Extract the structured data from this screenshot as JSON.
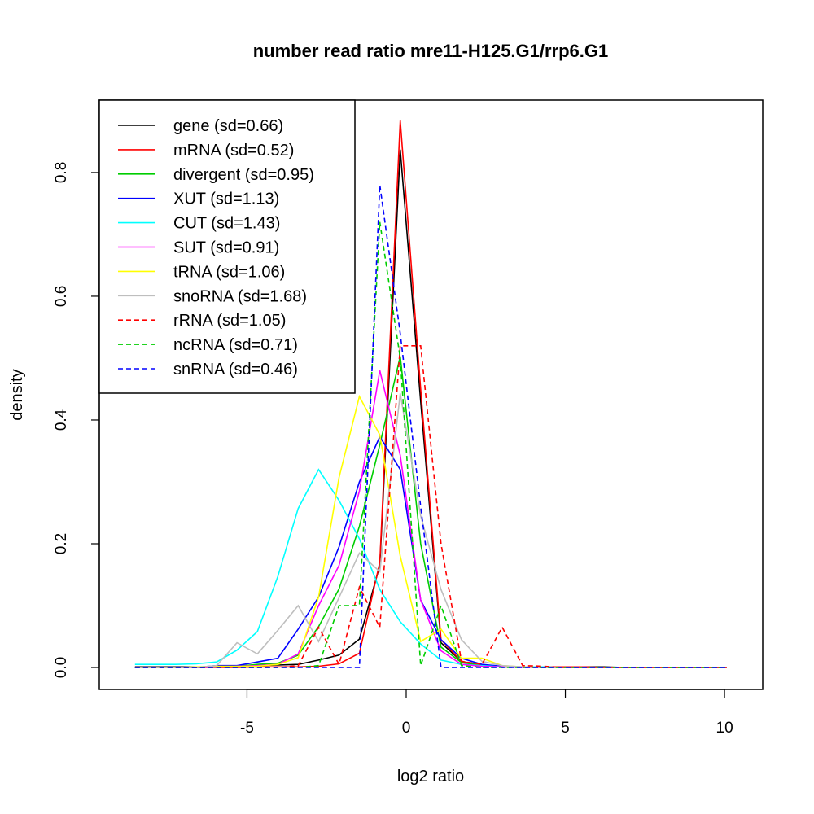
{
  "chart_data": {
    "type": "line",
    "title": "number read ratio mre11-H125.G1/rrp6.G1",
    "xlabel": "log2 ratio",
    "ylabel": "density",
    "xlim": [
      -9.64,
      11.2
    ],
    "ylim": [
      -0.0355,
      0.917
    ],
    "xticks": [
      -5,
      0,
      5,
      10
    ],
    "xtick_labels": [
      "-5",
      "0",
      "5",
      "10"
    ],
    "yticks": [
      0.0,
      0.2,
      0.4,
      0.6,
      0.8
    ],
    "ytick_labels": [
      "0.0",
      "0.2",
      "0.4",
      "0.6",
      "0.8"
    ],
    "grid": false,
    "legend_position": "top-left",
    "x_start": -8.52,
    "x_step": 0.641,
    "series": [
      {
        "name": "gene (sd=0.66)",
        "color": "#000000",
        "dash": false,
        "values": [
          0.001,
          0.001,
          0.001,
          0.001,
          0.001,
          0.002,
          0.003,
          0.004,
          0.005,
          0.012,
          0.02,
          0.046,
          0.165,
          0.837,
          0.43,
          0.04,
          0.01,
          0.003,
          0.001,
          0.001,
          0.001,
          0.001,
          0.001,
          0.001,
          0,
          0,
          0,
          0,
          0,
          0
        ]
      },
      {
        "name": "mRNA (sd=0.52)",
        "color": "#ff0000",
        "dash": false,
        "values": [
          0,
          0,
          0,
          0,
          0,
          0,
          0.001,
          0.001,
          0.001,
          0.002,
          0.006,
          0.023,
          0.17,
          0.884,
          0.45,
          0.045,
          0.01,
          0.003,
          0.001,
          0.001,
          0.001,
          0.001,
          0.001,
          0,
          0,
          0,
          0,
          0,
          0,
          0
        ]
      },
      {
        "name": "divergent (sd=0.95)",
        "color": "#00cd00",
        "dash": false,
        "values": [
          0,
          0,
          0,
          0,
          0.001,
          0.002,
          0.005,
          0.007,
          0.02,
          0.066,
          0.127,
          0.228,
          0.36,
          0.503,
          0.2,
          0.033,
          0.008,
          0.003,
          0.001,
          0.001,
          0,
          0,
          0,
          0,
          0,
          0,
          0,
          0,
          0,
          0
        ]
      },
      {
        "name": "XUT (sd=1.13)",
        "color": "#0000ff",
        "dash": false,
        "values": [
          0,
          0,
          0,
          0,
          0.003,
          0.003,
          0.009,
          0.015,
          0.062,
          0.114,
          0.195,
          0.3,
          0.373,
          0.32,
          0.109,
          0.045,
          0.015,
          0.005,
          0.002,
          0.001,
          0,
          0,
          0,
          0,
          0,
          0,
          0,
          0,
          0,
          0
        ]
      },
      {
        "name": "CUT (sd=1.43)",
        "color": "#00ffff",
        "dash": false,
        "values": [
          0.005,
          0.005,
          0.005,
          0.006,
          0.009,
          0.028,
          0.058,
          0.147,
          0.257,
          0.32,
          0.27,
          0.208,
          0.126,
          0.074,
          0.038,
          0.012,
          0.005,
          0.003,
          0.001,
          0.001,
          0.001,
          0,
          0,
          0,
          0,
          0,
          0,
          0,
          0,
          0
        ]
      },
      {
        "name": "SUT (sd=0.91)",
        "color": "#ff00ff",
        "dash": false,
        "values": [
          0,
          0,
          0,
          0,
          0.001,
          0.002,
          0.003,
          0.005,
          0.022,
          0.1,
          0.165,
          0.285,
          0.48,
          0.343,
          0.109,
          0.027,
          0.005,
          0.002,
          0.001,
          0,
          0,
          0,
          0,
          0,
          0,
          0,
          0,
          0,
          0,
          0
        ]
      },
      {
        "name": "tRNA (sd=1.06)",
        "color": "#ffff00",
        "dash": false,
        "values": [
          0,
          0,
          0,
          0.001,
          0.002,
          0.002,
          0.002,
          0.005,
          0.016,
          0.114,
          0.307,
          0.438,
          0.376,
          0.18,
          0.042,
          0.062,
          0.015,
          0.015,
          0.003,
          0.001,
          0,
          0,
          0,
          0,
          0,
          0,
          0,
          0,
          0,
          0
        ]
      },
      {
        "name": "snoRNA (sd=1.68)",
        "color": "#bebebe",
        "dash": false,
        "values": [
          0,
          0,
          0,
          0,
          0.003,
          0.04,
          0.022,
          0.06,
          0.1,
          0.042,
          0.113,
          0.185,
          0.155,
          0.443,
          0.245,
          0.126,
          0.045,
          0.01,
          0.003,
          0.001,
          0,
          0,
          0,
          0,
          0,
          0,
          0,
          0,
          0,
          0
        ]
      },
      {
        "name": "rRNA (sd=1.05)",
        "color": "#ff0000",
        "dash": true,
        "values": [
          0,
          0,
          0,
          0,
          0,
          0,
          0,
          0,
          0.003,
          0.065,
          0.005,
          0.13,
          0.065,
          0.52,
          0.52,
          0.2,
          0.01,
          0.005,
          0.065,
          0.003,
          0.002,
          0,
          0,
          0,
          0,
          0,
          0,
          0,
          0,
          0
        ]
      },
      {
        "name": "ncRNA (sd=0.71)",
        "color": "#00cd00",
        "dash": true,
        "values": [
          0,
          0,
          0,
          0,
          0,
          0,
          0,
          0,
          0,
          0.003,
          0.1,
          0.1,
          0.72,
          0.5,
          0.003,
          0.1,
          0.003,
          0,
          0,
          0,
          0,
          0,
          0,
          0,
          0,
          0,
          0,
          0,
          0,
          0
        ]
      },
      {
        "name": "snRNA (sd=0.46)",
        "color": "#0000ff",
        "dash": true,
        "values": [
          0,
          0,
          0,
          0,
          0,
          0,
          0,
          0,
          0,
          0,
          0,
          0,
          0.78,
          0.54,
          0.26,
          0,
          0,
          0,
          0,
          0,
          0,
          0,
          0,
          0,
          0,
          0,
          0,
          0,
          0,
          0
        ]
      }
    ]
  }
}
